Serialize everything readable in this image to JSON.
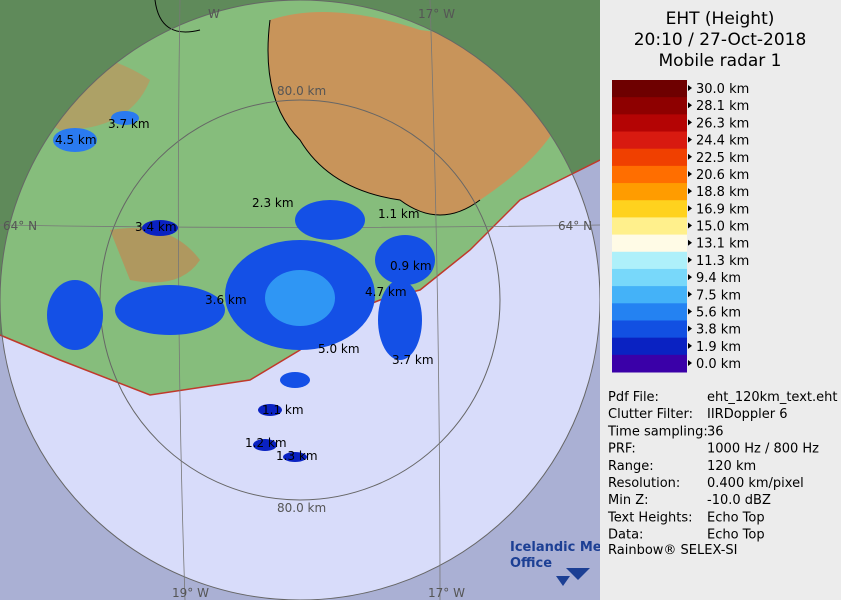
{
  "header": {
    "lines": [
      "EHT (Height)",
      "20:10 / 27-Oct-2018",
      "Mobile radar 1"
    ]
  },
  "legend": {
    "items": [
      {
        "label": "30.0 km",
        "color": "#6e0000"
      },
      {
        "label": "28.1 km",
        "color": "#8e0000"
      },
      {
        "label": "26.3 km",
        "color": "#b40404"
      },
      {
        "label": "24.4 km",
        "color": "#d81a10"
      },
      {
        "label": "22.5 km",
        "color": "#f04000"
      },
      {
        "label": "20.6 km",
        "color": "#ff6e00"
      },
      {
        "label": "18.8 km",
        "color": "#ff9c00"
      },
      {
        "label": "16.9 km",
        "color": "#ffd21e"
      },
      {
        "label": "15.0 km",
        "color": "#fff08c"
      },
      {
        "label": "13.1 km",
        "color": "#fffbe6"
      },
      {
        "label": "11.3 km",
        "color": "#aef0fa"
      },
      {
        "label": "9.4 km",
        "color": "#78d8fa"
      },
      {
        "label": "7.5 km",
        "color": "#44b2f8"
      },
      {
        "label": "5.6 km",
        "color": "#2482f2"
      },
      {
        "label": "3.8 km",
        "color": "#1250e2"
      },
      {
        "label": "1.9 km",
        "color": "#0a22c2"
      },
      {
        "label": "0.0 km",
        "color": "#3a00a8"
      }
    ]
  },
  "info": {
    "rows": [
      [
        "Pdf File:",
        "eht_120km_text.eht"
      ],
      [
        "Clutter Filter:",
        "IIRDoppler 6"
      ],
      [
        "Time sampling:",
        "36"
      ],
      [
        "PRF:",
        "1000 Hz / 800 Hz"
      ],
      [
        "Range:",
        "120 km"
      ],
      [
        "Resolution:",
        "0.400 km/pixel"
      ],
      [
        "Min Z:",
        "-10.0 dBZ"
      ],
      [
        "Text Heights:",
        "Echo Top"
      ],
      [
        "Data:",
        "Echo Top"
      ]
    ],
    "footer": "Rainbow® SELEX-SI"
  },
  "map": {
    "grid_labels": [
      "W",
      "17° W",
      "80.0 km",
      "64° N",
      "64° N",
      "80.0 km",
      "19° W",
      "17° W"
    ],
    "echo_labels": [
      "3.7 km",
      "4.5 km",
      "2.3 km",
      "1.1 km",
      "3.4 km",
      "0.9 km",
      "4.7 km",
      "3.6 km",
      "5.0 km",
      "3.7 km",
      "1.1 km",
      "1.2 km",
      "1.3 km"
    ]
  },
  "logo": {
    "lines": [
      "Icelandic Met",
      "Office"
    ]
  }
}
